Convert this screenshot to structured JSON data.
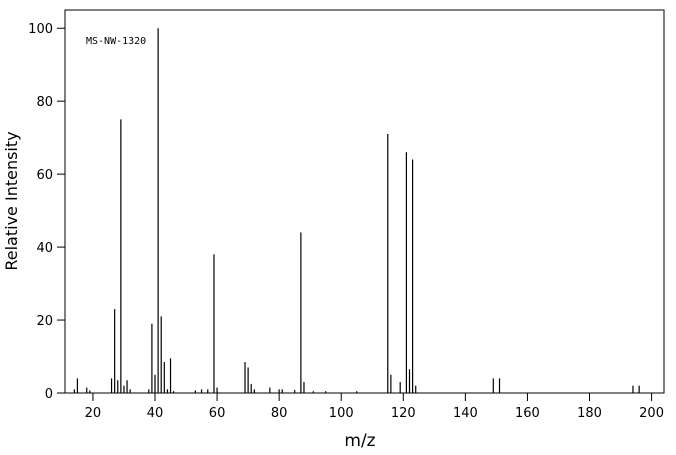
{
  "chart_data": {
    "type": "stick",
    "annotation": "MS-NW-1320",
    "x_label": "m/z",
    "y_label": "Relative Intensity",
    "x": [
      14,
      15,
      18,
      19,
      26,
      27,
      28,
      29,
      30,
      31,
      32,
      38,
      39,
      40,
      41,
      42,
      43,
      44,
      45,
      46,
      53,
      55,
      57,
      59,
      60,
      69,
      70,
      71,
      72,
      77,
      80,
      81,
      85,
      87,
      88,
      91,
      95,
      105,
      115,
      116,
      119,
      121,
      122,
      123,
      124,
      149,
      151,
      194,
      196
    ],
    "values": [
      1,
      4,
      1.5,
      0.7,
      4,
      23,
      3.5,
      75,
      2,
      3.5,
      1,
      1,
      19,
      5,
      100,
      21,
      8.5,
      1,
      9.5,
      0.5,
      0.7,
      1,
      1,
      38,
      1.5,
      8.5,
      7,
      2.5,
      1,
      1.5,
      1,
      1,
      0.8,
      44,
      3,
      0.5,
      0.5,
      0.5,
      71,
      5,
      3,
      66,
      6.5,
      64,
      2,
      4,
      4,
      2,
      2
    ],
    "color": "#000000",
    "xlim": [
      11,
      204
    ],
    "ylim": [
      0,
      105
    ],
    "xticks": [
      20,
      40,
      60,
      80,
      100,
      120,
      140,
      160,
      180,
      200
    ],
    "yticks": [
      0,
      20,
      40,
      60,
      80,
      100
    ]
  }
}
